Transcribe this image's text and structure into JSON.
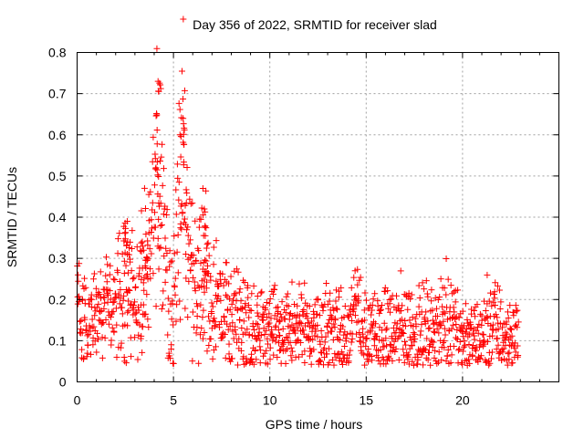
{
  "chart_data": {
    "type": "scatter",
    "title": "Day 356 of 2022, SRMTID for receiver slad",
    "xlabel": "GPS time / hours",
    "ylabel": "SRMTID / TECUs",
    "xlim": [
      0,
      25
    ],
    "ylim": [
      0,
      0.8
    ],
    "xticks": [
      0,
      5,
      10,
      15,
      20
    ],
    "xtick_labels": [
      "0",
      "5",
      "10",
      "15",
      "20"
    ],
    "yticks": [
      0,
      0.1,
      0.2,
      0.3,
      0.4,
      0.5,
      0.6,
      0.7,
      0.8
    ],
    "ytick_labels": [
      "0",
      "0.1",
      "0.2",
      "0.3",
      "0.4",
      "0.5",
      "0.6",
      "0.7",
      "0.8"
    ],
    "grid": true,
    "marker": "+",
    "marker_color": "#ff0000",
    "series": [
      {
        "name": "slad",
        "x_start": 0.0,
        "x_end": 22.9,
        "trend": [
          [
            0.0,
            0.15
          ],
          [
            0.5,
            0.16
          ],
          [
            1.0,
            0.15
          ],
          [
            1.5,
            0.17
          ],
          [
            2.0,
            0.17
          ],
          [
            2.5,
            0.22
          ],
          [
            3.0,
            0.22
          ],
          [
            3.3,
            0.18
          ],
          [
            3.6,
            0.25
          ],
          [
            4.0,
            0.42
          ],
          [
            4.2,
            0.58
          ],
          [
            4.4,
            0.4
          ],
          [
            4.7,
            0.22
          ],
          [
            5.0,
            0.16
          ],
          [
            5.3,
            0.48
          ],
          [
            5.5,
            0.56
          ],
          [
            5.8,
            0.32
          ],
          [
            6.2,
            0.22
          ],
          [
            6.6,
            0.3
          ],
          [
            7.0,
            0.18
          ],
          [
            8.0,
            0.16
          ],
          [
            9.0,
            0.14
          ],
          [
            10.0,
            0.13
          ],
          [
            11.0,
            0.12
          ],
          [
            12.0,
            0.13
          ],
          [
            13.0,
            0.13
          ],
          [
            14.0,
            0.13
          ],
          [
            14.6,
            0.17
          ],
          [
            15.0,
            0.11
          ],
          [
            16.0,
            0.12
          ],
          [
            17.0,
            0.13
          ],
          [
            18.0,
            0.12
          ],
          [
            19.0,
            0.13
          ],
          [
            19.6,
            0.17
          ],
          [
            20.0,
            0.1
          ],
          [
            21.0,
            0.1
          ],
          [
            21.6,
            0.15
          ],
          [
            22.0,
            0.11
          ],
          [
            22.9,
            0.11
          ]
        ],
        "peaks": [
          {
            "x": 4.2,
            "y": 0.73
          },
          {
            "x": 5.5,
            "y": 0.64
          },
          {
            "x": 6.6,
            "y": 0.42
          },
          {
            "x": 3.5,
            "y": 0.47
          },
          {
            "x": 2.6,
            "y": 0.39
          }
        ]
      }
    ]
  }
}
